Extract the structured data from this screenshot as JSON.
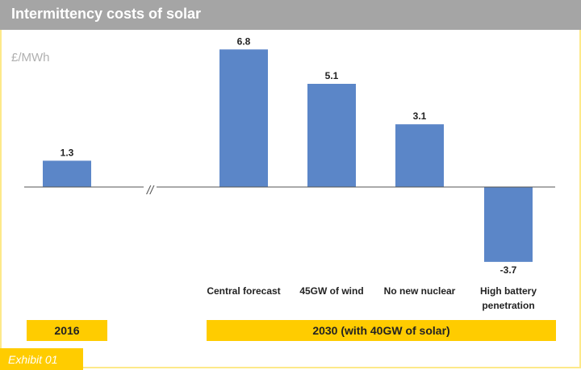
{
  "chart_data": {
    "type": "bar",
    "title": "Intermittency costs of solar",
    "ylabel": "£/MWh",
    "categories": [
      "2016",
      "Central forecast",
      "45GW of wind",
      "No new nuclear",
      "High battery penetration"
    ],
    "category_lines": [
      [
        ""
      ],
      [
        "Central forecast"
      ],
      [
        "45GW of wind"
      ],
      [
        "No new nuclear"
      ],
      [
        "High battery",
        "penetration"
      ]
    ],
    "values": [
      1.3,
      6.8,
      5.1,
      3.1,
      -3.7
    ],
    "data_labels": [
      "1.3",
      "6.8",
      "5.1",
      "3.1",
      "-3.7"
    ],
    "groups": [
      "2016",
      "2030 (with 40GW of solar)"
    ],
    "axis_break": "//",
    "grid": false,
    "bar_color": "#5b86c8",
    "group_color": "#ffcc00"
  },
  "footer": {
    "exhibit": "Exhibit 01"
  }
}
